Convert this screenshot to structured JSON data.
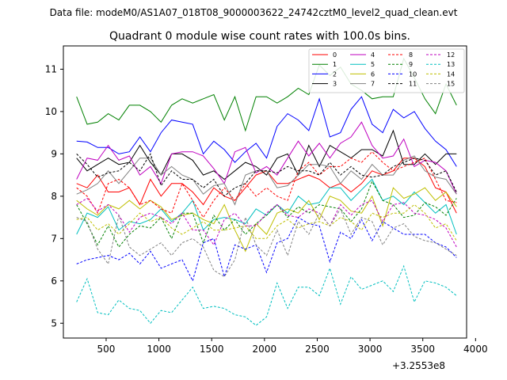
{
  "suptitle": "Data file: modeM0/AS1A07_018T08_9000003622_24742cztM0_level2_quad_clean.evt",
  "chart_data": {
    "type": "line",
    "title": "Quadrant 0 module wise count rates with 100.0s bins.",
    "xlabel": "",
    "ylabel": "",
    "x_offset_label": "+3.2553e8",
    "xlim": [
      95,
      3915
    ],
    "ylim": [
      4.65,
      11.55
    ],
    "xticks": [
      500,
      1000,
      1500,
      2000,
      2500,
      3000,
      3500,
      4000
    ],
    "yticks": [
      5,
      6,
      7,
      8,
      9,
      10,
      11
    ],
    "grid": false,
    "legend_position": "top-right",
    "legend_columns": 4,
    "x": [
      220,
      320,
      420,
      520,
      620,
      720,
      820,
      920,
      1020,
      1120,
      1220,
      1320,
      1420,
      1520,
      1620,
      1720,
      1820,
      1920,
      2020,
      2120,
      2220,
      2320,
      2420,
      2520,
      2620,
      2720,
      2820,
      2920,
      3020,
      3120,
      3220,
      3320,
      3420,
      3520,
      3620,
      3720,
      3820
    ],
    "series": [
      {
        "name": "0",
        "color": "#ff0000",
        "dash": false,
        "values": [
          8.3,
          8.2,
          8.5,
          8.1,
          8.1,
          8.2,
          7.8,
          8.4,
          8.0,
          8.3,
          8.3,
          8.1,
          7.8,
          8.2,
          8.0,
          7.9,
          8.2,
          8.5,
          8.6,
          8.3,
          8.3,
          8.4,
          8.5,
          8.4,
          8.2,
          8.3,
          8.1,
          8.3,
          8.6,
          8.5,
          8.6,
          8.9,
          8.9,
          8.7,
          8.2,
          8.1,
          7.6
        ]
      },
      {
        "name": "1",
        "color": "#008000",
        "dash": false,
        "values": [
          10.35,
          9.7,
          9.75,
          9.95,
          9.8,
          10.15,
          10.15,
          10.0,
          9.75,
          10.15,
          10.3,
          10.2,
          10.3,
          10.4,
          9.8,
          10.35,
          9.55,
          10.35,
          10.35,
          10.2,
          10.35,
          10.55,
          10.4,
          11.1,
          10.85,
          11.05,
          10.65,
          10.5,
          10.3,
          10.35,
          10.35,
          11.25,
          10.8,
          10.3,
          9.95,
          10.65,
          10.15
        ]
      },
      {
        "name": "2",
        "color": "#0000ff",
        "dash": false,
        "values": [
          9.3,
          9.28,
          9.15,
          9.15,
          9.0,
          9.05,
          9.4,
          9.05,
          9.5,
          9.8,
          9.75,
          9.7,
          9.0,
          9.3,
          9.1,
          8.8,
          9.05,
          9.25,
          8.9,
          9.65,
          9.95,
          9.8,
          9.55,
          10.3,
          9.4,
          9.5,
          10.05,
          10.35,
          9.7,
          9.5,
          10.05,
          9.85,
          10.0,
          9.6,
          9.3,
          9.1,
          8.7
        ]
      },
      {
        "name": "3",
        "color": "#000000",
        "dash": false,
        "values": [
          8.9,
          8.6,
          8.75,
          8.9,
          8.75,
          8.8,
          9.2,
          8.8,
          8.5,
          9.0,
          9.0,
          8.85,
          8.5,
          8.6,
          8.4,
          8.6,
          8.8,
          8.7,
          8.5,
          8.9,
          9.0,
          8.5,
          9.2,
          8.7,
          9.2,
          9.05,
          8.9,
          9.1,
          9.1,
          8.95,
          9.55,
          8.75,
          8.75,
          9.0,
          8.75,
          9.0,
          9.0
        ]
      },
      {
        "name": "4",
        "color": "#bf00bf",
        "dash": false,
        "values": [
          8.4,
          8.9,
          8.85,
          9.2,
          8.85,
          8.95,
          8.5,
          8.7,
          8.3,
          9.0,
          9.05,
          9.05,
          8.95,
          8.65,
          8.3,
          9.05,
          9.15,
          8.55,
          8.7,
          8.5,
          8.9,
          9.3,
          8.95,
          9.25,
          8.9,
          9.25,
          9.4,
          9.75,
          9.2,
          8.9,
          8.95,
          9.35,
          8.7,
          8.85,
          8.8,
          8.6,
          8.05
        ]
      },
      {
        "name": "5",
        "color": "#00bfbf",
        "dash": false,
        "values": [
          7.1,
          7.6,
          7.5,
          7.75,
          7.2,
          7.4,
          7.35,
          7.45,
          7.7,
          7.4,
          7.6,
          7.9,
          7.2,
          7.45,
          7.5,
          7.45,
          7.35,
          7.7,
          7.55,
          7.8,
          7.6,
          8.0,
          7.8,
          7.85,
          8.2,
          8.2,
          7.9,
          8.15,
          8.4,
          7.9,
          8.0,
          7.8,
          8.1,
          7.85,
          7.6,
          7.8,
          7.1
        ]
      },
      {
        "name": "6",
        "color": "#bfbf00",
        "dash": false,
        "values": [
          7.9,
          7.7,
          7.55,
          7.8,
          7.7,
          7.9,
          7.7,
          7.9,
          7.75,
          7.45,
          7.55,
          7.6,
          7.45,
          7.35,
          7.8,
          7.2,
          6.7,
          7.35,
          7.1,
          7.6,
          7.7,
          7.6,
          7.9,
          7.45,
          8.0,
          7.9,
          7.65,
          7.6,
          8.0,
          7.3,
          8.2,
          7.95,
          8.05,
          8.2,
          7.9,
          8.1,
          7.75
        ]
      },
      {
        "name": "7",
        "color": "#808080",
        "dash": false,
        "values": [
          8.05,
          8.15,
          8.3,
          8.6,
          8.3,
          8.6,
          8.9,
          8.9,
          8.5,
          8.7,
          8.5,
          8.4,
          8.05,
          8.25,
          8.3,
          7.8,
          8.5,
          8.6,
          8.6,
          8.2,
          8.25,
          8.5,
          8.75,
          8.75,
          8.7,
          8.3,
          8.6,
          8.4,
          8.75,
          8.5,
          8.5,
          8.85,
          8.95,
          8.6,
          8.45,
          8.4,
          8.05
        ]
      },
      {
        "name": "8",
        "color": "#ff0000",
        "dash": true,
        "values": [
          8.2,
          8.0,
          7.6,
          8.3,
          8.4,
          8.2,
          7.8,
          7.9,
          7.7,
          7.6,
          8.3,
          7.9,
          7.5,
          7.9,
          8.2,
          7.9,
          8.3,
          8.0,
          8.2,
          8.0,
          7.9,
          8.6,
          8.8,
          8.5,
          8.7,
          8.7,
          8.9,
          8.8,
          9.05,
          8.8,
          8.6,
          8.7,
          8.8,
          8.9,
          8.4,
          7.9,
          7.85
        ]
      },
      {
        "name": "9",
        "color": "#008000",
        "dash": true,
        "values": [
          7.8,
          7.35,
          6.85,
          7.3,
          6.8,
          7.1,
          7.3,
          7.25,
          7.5,
          7.0,
          7.6,
          7.6,
          6.9,
          7.55,
          7.2,
          7.45,
          7.1,
          7.35,
          7.55,
          7.8,
          7.5,
          7.75,
          7.6,
          7.8,
          7.75,
          7.7,
          7.4,
          7.7,
          8.35,
          7.9,
          7.8,
          7.5,
          7.55,
          7.85,
          7.75,
          7.55,
          7.95
        ]
      },
      {
        "name": "10",
        "color": "#0000ff",
        "dash": true,
        "values": [
          6.4,
          6.5,
          6.55,
          6.6,
          6.5,
          6.65,
          6.4,
          6.7,
          6.3,
          6.4,
          6.5,
          6.0,
          6.9,
          7.0,
          6.1,
          6.85,
          6.75,
          6.85,
          6.2,
          6.9,
          7.0,
          7.5,
          7.35,
          7.3,
          6.45,
          7.15,
          7.0,
          7.45,
          6.95,
          7.4,
          7.25,
          7.1,
          7.1,
          7.1,
          6.9,
          6.8,
          6.55
        ]
      },
      {
        "name": "11",
        "color": "#000000",
        "dash": true,
        "values": [
          9.0,
          8.75,
          8.45,
          8.55,
          8.6,
          8.8,
          8.6,
          9.0,
          8.25,
          8.6,
          8.4,
          8.4,
          8.2,
          8.4,
          8.0,
          8.2,
          8.3,
          8.6,
          8.6,
          8.55,
          8.7,
          8.6,
          8.6,
          8.5,
          8.8,
          8.5,
          8.7,
          8.5,
          8.45,
          8.5,
          8.7,
          8.8,
          8.9,
          8.85,
          8.5,
          8.6,
          8.1
        ]
      },
      {
        "name": "12",
        "color": "#bf00bf",
        "dash": true,
        "values": [
          7.8,
          7.95,
          7.65,
          7.8,
          7.55,
          7.15,
          7.5,
          7.6,
          7.5,
          7.35,
          7.6,
          7.2,
          7.2,
          6.85,
          7.45,
          7.6,
          7.3,
          7.3,
          7.6,
          7.8,
          7.55,
          7.5,
          7.7,
          7.6,
          7.3,
          7.8,
          7.55,
          7.8,
          7.9,
          7.4,
          7.8,
          7.85,
          7.6,
          7.55,
          7.45,
          7.25,
          6.8
        ]
      },
      {
        "name": "13",
        "color": "#00bfbf",
        "dash": true,
        "values": [
          5.5,
          6.05,
          5.25,
          5.2,
          5.55,
          5.35,
          5.3,
          5.0,
          5.3,
          5.25,
          5.55,
          5.85,
          5.35,
          5.4,
          5.35,
          5.2,
          5.15,
          4.95,
          5.15,
          5.95,
          5.35,
          5.85,
          5.85,
          5.65,
          6.3,
          5.45,
          6.1,
          5.8,
          5.9,
          6.0,
          5.75,
          6.35,
          5.5,
          6.0,
          5.95,
          5.85,
          5.65
        ]
      },
      {
        "name": "14",
        "color": "#bfbf00",
        "dash": true,
        "values": [
          7.45,
          7.5,
          7.2,
          7.35,
          7.1,
          7.35,
          7.6,
          7.4,
          7.5,
          7.25,
          7.1,
          7.25,
          7.4,
          7.2,
          7.2,
          7.25,
          7.3,
          7.0,
          7.0,
          7.3,
          7.45,
          7.25,
          7.35,
          7.4,
          7.3,
          7.5,
          7.4,
          7.2,
          7.6,
          7.5,
          7.6,
          7.6,
          7.8,
          7.6,
          7.25,
          7.35,
          6.95
        ]
      },
      {
        "name": "15",
        "color": "#808080",
        "dash": true,
        "values": [
          7.5,
          7.4,
          6.75,
          6.4,
          7.55,
          6.8,
          6.6,
          6.75,
          6.9,
          6.6,
          6.9,
          7.0,
          6.8,
          6.25,
          6.1,
          6.5,
          7.5,
          6.85,
          6.6,
          7.2,
          6.6,
          7.4,
          7.1,
          7.6,
          7.3,
          7.7,
          7.1,
          7.5,
          7.4,
          6.85,
          7.25,
          7.35,
          7.05,
          6.95,
          6.9,
          6.75,
          6.6
        ]
      }
    ]
  }
}
